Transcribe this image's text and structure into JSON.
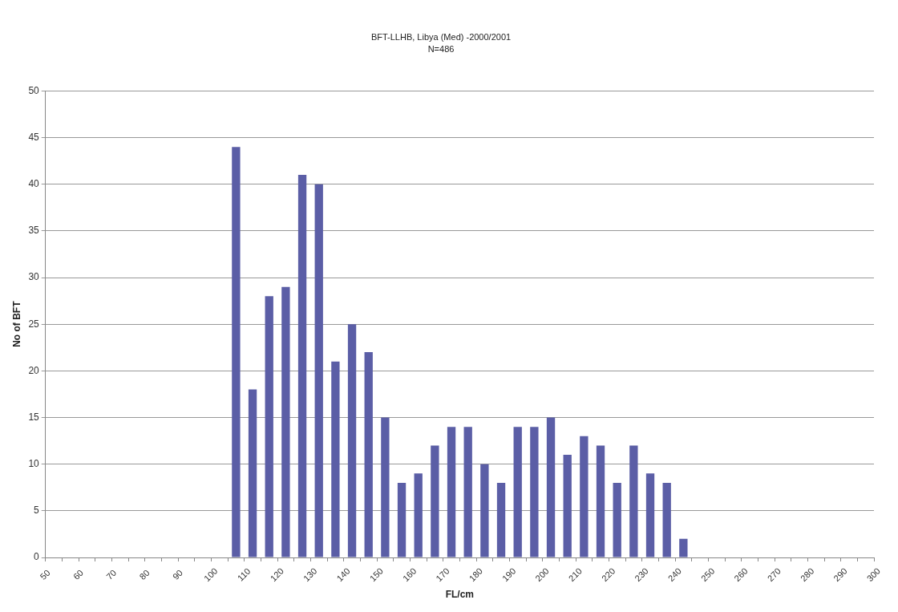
{
  "chart_data": {
    "type": "bar",
    "title": "BFT-LLHB, Libya (Med) -2000/2001",
    "subtitle": "N=486",
    "xlabel": "FL/cm",
    "ylabel": "No of BFT",
    "x": [
      107.5,
      112.5,
      117.5,
      122.5,
      127.5,
      132.5,
      137.5,
      142.5,
      147.5,
      152.5,
      157.5,
      162.5,
      167.5,
      172.5,
      177.5,
      182.5,
      187.5,
      192.5,
      197.5,
      202.5,
      207.5,
      212.5,
      217.5,
      222.5,
      227.5,
      232.5,
      237.5,
      242.5
    ],
    "values": [
      44,
      18,
      28,
      29,
      41,
      40,
      21,
      25,
      22,
      15,
      8,
      9,
      12,
      14,
      14,
      10,
      8,
      14,
      14,
      15,
      11,
      13,
      12,
      8,
      12,
      9,
      8,
      2
    ],
    "color": "#5b5ea6",
    "xlim": [
      50,
      300
    ],
    "xticks": [
      50,
      {
        "value": 55,
        "label": null
      },
      60,
      {
        "value": 65,
        "label": null
      },
      70,
      {
        "value": 75,
        "label": null
      },
      80,
      {
        "value": 85,
        "label": null
      },
      90,
      {
        "value": 95,
        "label": null
      },
      100,
      {
        "value": 105,
        "label": null
      },
      110,
      {
        "value": 115,
        "label": null
      },
      120,
      {
        "value": 125,
        "label": null
      },
      130,
      {
        "value": 135,
        "label": null
      },
      140,
      {
        "value": 145,
        "label": null
      },
      150,
      {
        "value": 155,
        "label": null
      },
      160,
      {
        "value": 165,
        "label": null
      },
      170,
      {
        "value": 175,
        "label": null
      },
      180,
      {
        "value": 185,
        "label": null
      },
      190,
      {
        "value": 195,
        "label": null
      },
      200,
      {
        "value": 205,
        "label": null
      },
      210,
      {
        "value": 215,
        "label": null
      },
      220,
      {
        "value": 225,
        "label": null
      },
      230,
      {
        "value": 235,
        "label": null
      },
      240,
      {
        "value": 245,
        "label": null
      },
      250,
      {
        "value": 255,
        "label": null
      },
      260,
      {
        "value": 265,
        "label": null
      },
      270,
      {
        "value": 275,
        "label": null
      },
      280,
      {
        "value": 285,
        "label": null
      },
      290,
      {
        "value": 295,
        "label": null
      },
      300
    ],
    "ylim": [
      0,
      50
    ],
    "yticks": [
      0,
      5,
      10,
      15,
      20,
      25,
      30,
      35,
      40,
      45,
      50
    ],
    "grid": "y"
  }
}
